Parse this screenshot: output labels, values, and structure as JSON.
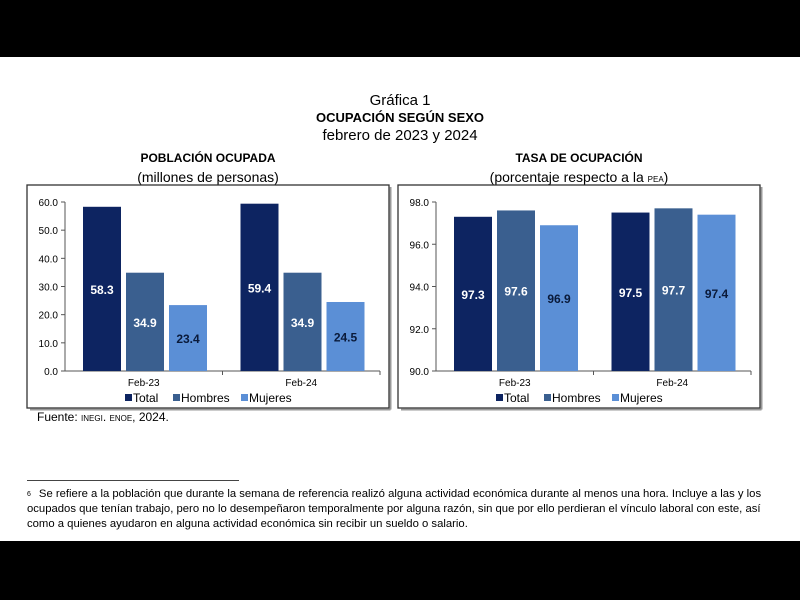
{
  "header": {
    "line1": "Gráfica 1",
    "line2": "OCUPACIÓN SEGÚN SEXO",
    "line3": "febrero de 2023 y 2024"
  },
  "chart_data": [
    {
      "type": "bar",
      "title": "POBLACIÓN OCUPADA",
      "subtitle": "(millones de personas)",
      "categories": [
        "Feb-23",
        "Feb-24"
      ],
      "series": [
        {
          "name": "Total",
          "values": [
            58.3,
            59.4
          ]
        },
        {
          "name": "Hombres",
          "values": [
            34.9,
            34.9
          ]
        },
        {
          "name": "Mujeres",
          "values": [
            23.4,
            24.5
          ]
        }
      ],
      "ylim": [
        0,
        60
      ],
      "yticks": [
        "0.0",
        "10.0",
        "20.0",
        "30.0",
        "40.0",
        "50.0",
        "60.0"
      ],
      "grid": false,
      "legend": "bottom"
    },
    {
      "type": "bar",
      "title": "TASA DE OCUPACIÓN",
      "subtitle_pre": "(porcentaje respecto a la ",
      "subtitle_sc": "pea",
      "subtitle_post": ")",
      "categories": [
        "Feb-23",
        "Feb-24"
      ],
      "series": [
        {
          "name": "Total",
          "values": [
            97.3,
            97.5
          ]
        },
        {
          "name": "Hombres",
          "values": [
            97.6,
            97.7
          ]
        },
        {
          "name": "Mujeres",
          "values": [
            96.9,
            97.4
          ]
        }
      ],
      "ylim": [
        90,
        98
      ],
      "yticks": [
        "90.0",
        "92.0",
        "94.0",
        "96.0",
        "98.0"
      ],
      "grid": false,
      "legend": "bottom"
    }
  ],
  "colors": {
    "Total": "#0d2461",
    "Hombres": "#3a5f8f",
    "Mujeres": "#5b8fd6"
  },
  "source": {
    "pre": "Fuente: ",
    "sc": "inegi. enoe",
    "post": ", 2024."
  },
  "footnote": {
    "mark": "6",
    "text": "Se refiere a la población que durante la semana de referencia realizó alguna actividad económica durante al menos una hora. Incluye a las y los ocupados que tenían trabajo, pero no lo desempeñaron temporalmente por alguna razón, sin que por ello perdieran el vínculo laboral con este, así como a quienes ayudaron en alguna actividad económica sin recibir un sueldo o salario."
  }
}
